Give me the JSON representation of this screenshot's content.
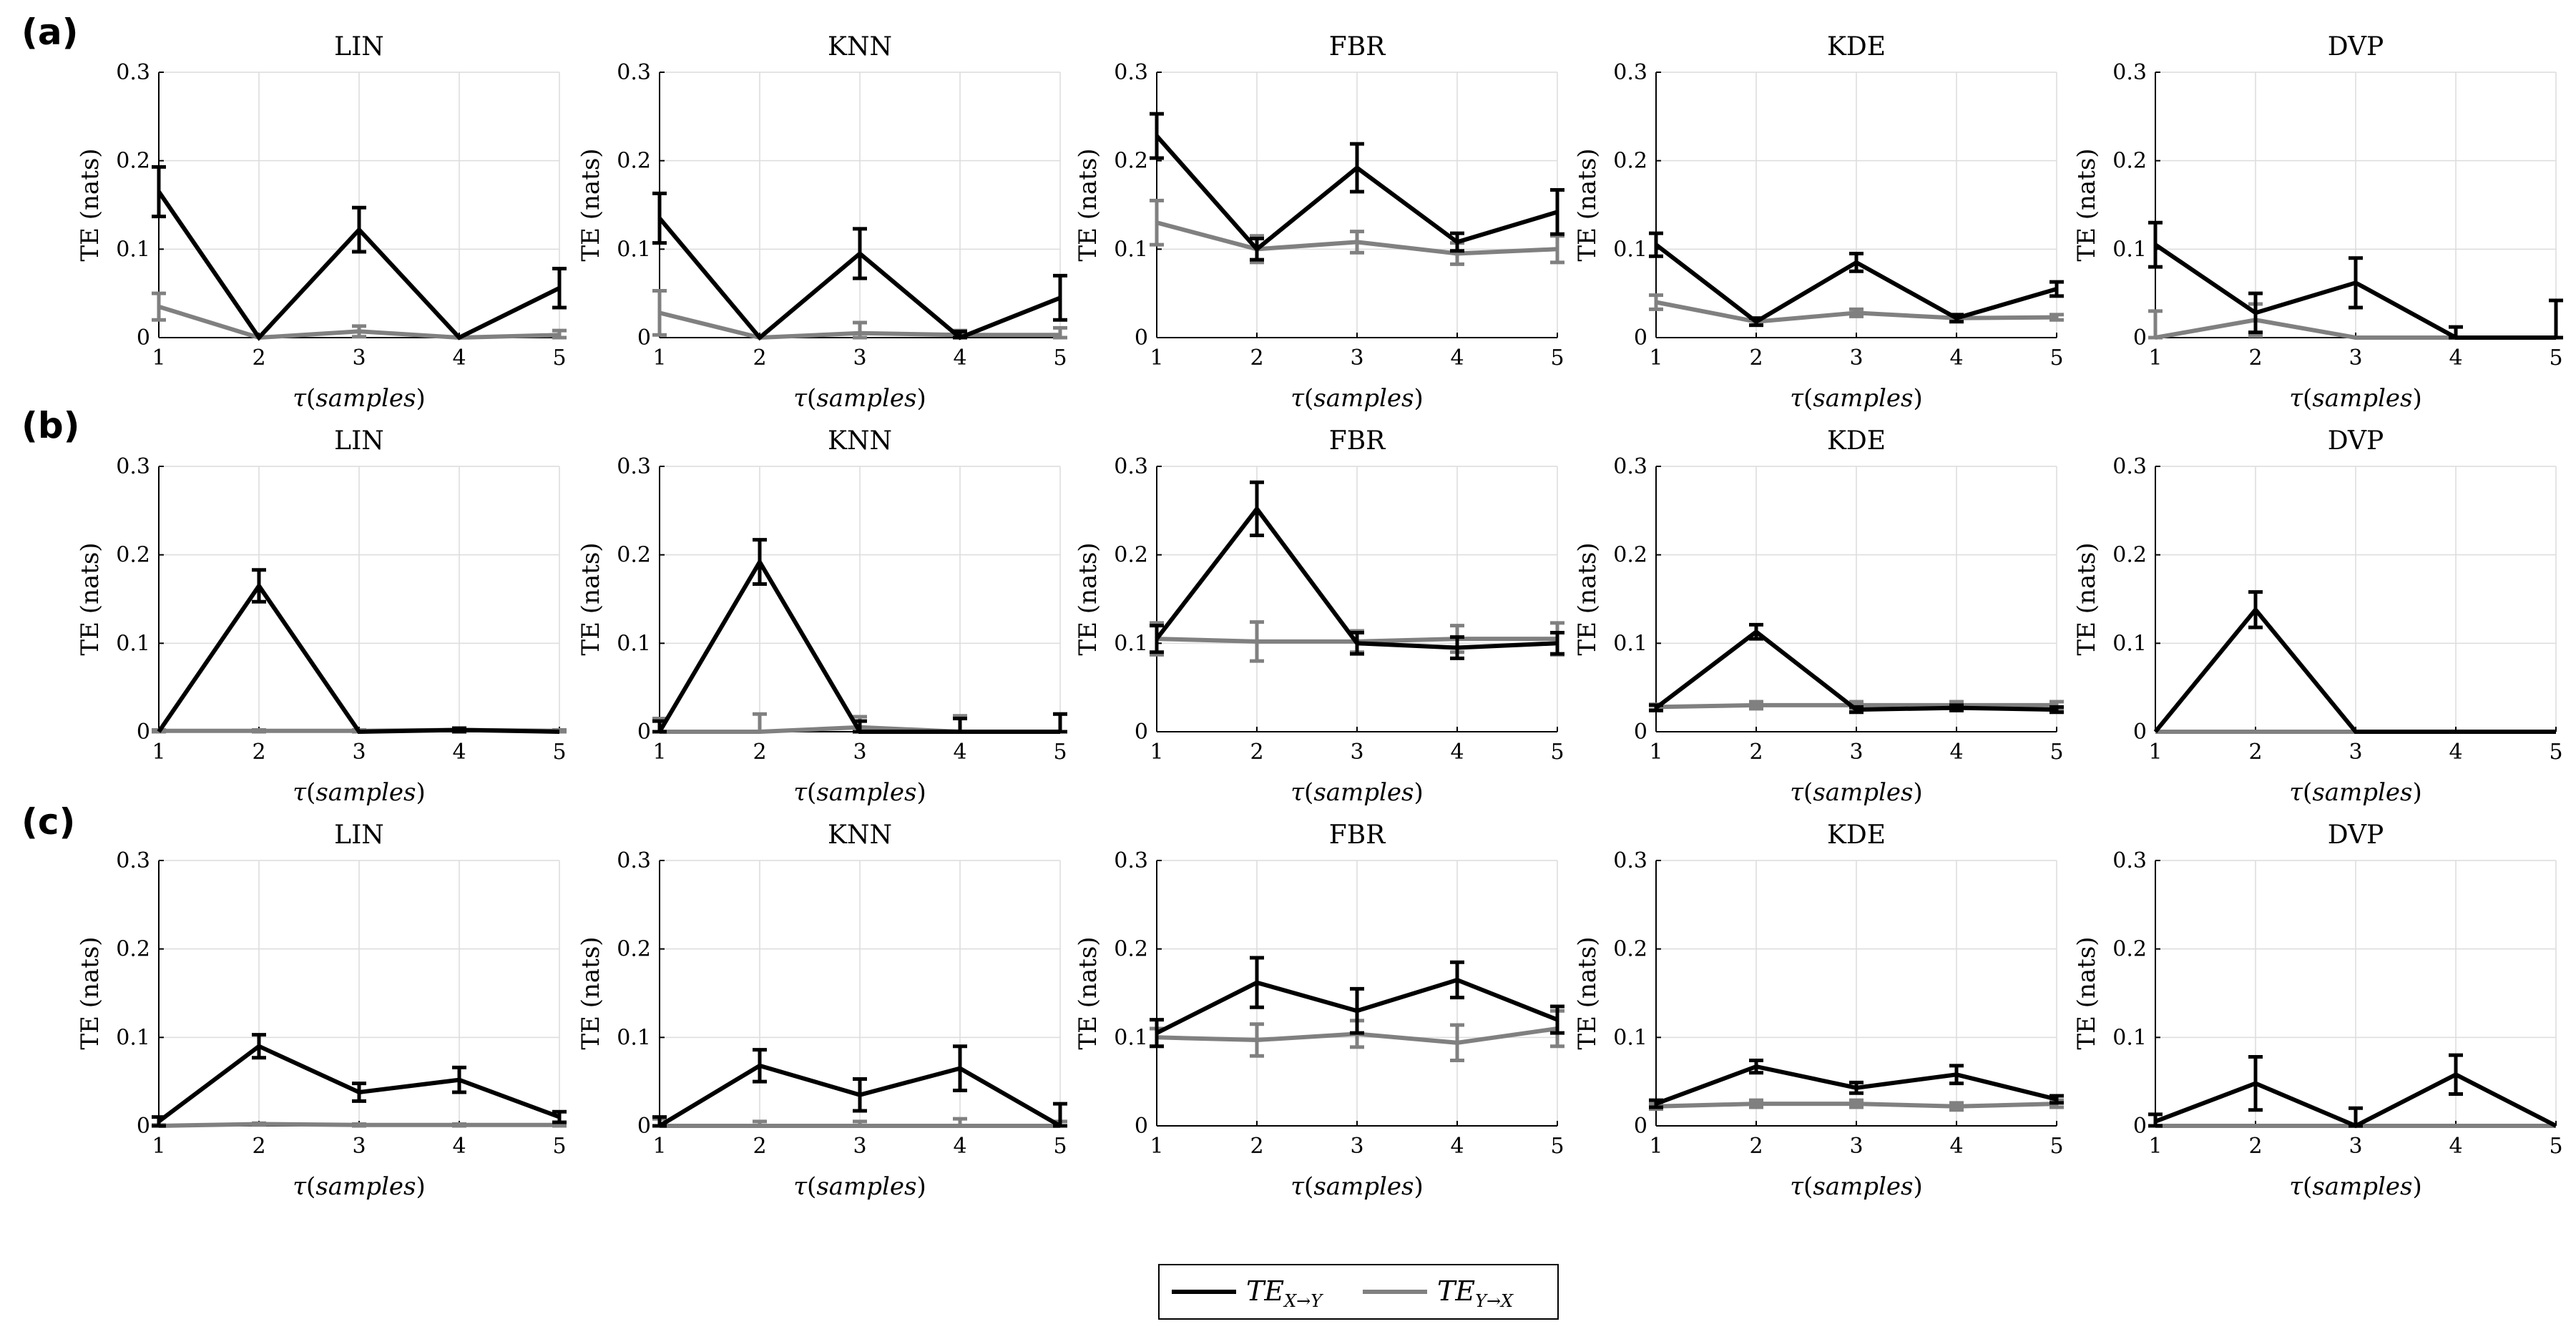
{
  "chart_data": {
    "type": "line",
    "x": [
      1,
      2,
      3,
      4,
      5
    ],
    "ylim": [
      0,
      0.3
    ],
    "yticks": [
      "0",
      "0.1",
      "0.2",
      "0.3"
    ],
    "xticks": [
      "1",
      "2",
      "3",
      "4",
      "5"
    ],
    "ylabel": "TE (nats)",
    "xlabel": "τ(samples)",
    "grid": true,
    "legend": {
      "position": "bottom-center",
      "entries": [
        {
          "name": "TE",
          "sub": "X→Y",
          "color": "#000000"
        },
        {
          "name": "TE",
          "sub": "Y→X",
          "color": "#808080"
        }
      ]
    },
    "rows": [
      {
        "label": "(a)",
        "panels": [
          {
            "title": "LIN",
            "series": [
              {
                "name": "TE X→Y",
                "values": [
                  0.165,
                  0.0,
                  0.122,
                  0.0,
                  0.056
                ],
                "err": [
                  0.028,
                  0,
                  0.025,
                  0,
                  0.022
                ]
              },
              {
                "name": "TE Y→X",
                "values": [
                  0.035,
                  0.0,
                  0.007,
                  0.0,
                  0.003
                ],
                "err": [
                  0.015,
                  0,
                  0.006,
                  0,
                  0.005
                ]
              }
            ]
          },
          {
            "title": "KNN",
            "series": [
              {
                "name": "TE X→Y",
                "values": [
                  0.135,
                  0.0,
                  0.095,
                  0.0,
                  0.045
                ],
                "err": [
                  0.028,
                  0,
                  0.028,
                  0.007,
                  0.025
                ]
              },
              {
                "name": "TE Y→X",
                "values": [
                  0.028,
                  0.0,
                  0.005,
                  0.003,
                  0.003
                ],
                "err": [
                  0.025,
                  0,
                  0.012,
                  0.005,
                  0.008
                ]
              }
            ]
          },
          {
            "title": "FBR",
            "series": [
              {
                "name": "TE X→Y",
                "values": [
                  0.228,
                  0.1,
                  0.192,
                  0.108,
                  0.142
                ],
                "err": [
                  0.025,
                  0.012,
                  0.027,
                  0.01,
                  0.025
                ]
              },
              {
                "name": "TE Y→X",
                "values": [
                  0.13,
                  0.1,
                  0.108,
                  0.095,
                  0.1
                ],
                "err": [
                  0.025,
                  0.015,
                  0.012,
                  0.012,
                  0.015
                ]
              }
            ]
          },
          {
            "title": "KDE",
            "series": [
              {
                "name": "TE X→Y",
                "values": [
                  0.105,
                  0.018,
                  0.085,
                  0.022,
                  0.055
                ],
                "err": [
                  0.013,
                  0.004,
                  0.01,
                  0.004,
                  0.008
                ]
              },
              {
                "name": "TE Y→X",
                "values": [
                  0.04,
                  0.018,
                  0.028,
                  0.022,
                  0.023
                ],
                "err": [
                  0.008,
                  0.004,
                  0.004,
                  0.003,
                  0.003
                ]
              }
            ]
          },
          {
            "title": "DVP",
            "series": [
              {
                "name": "TE X→Y",
                "values": [
                  0.105,
                  0.028,
                  0.062,
                  0.0,
                  0.0
                ],
                "err": [
                  0.025,
                  0.022,
                  0.028,
                  0.012,
                  0.042
                ]
              },
              {
                "name": "TE Y→X",
                "values": [
                  0.0,
                  0.02,
                  0.0,
                  0.0,
                  0.0
                ],
                "err": [
                  0.03,
                  0.018,
                  0,
                  0,
                  0
                ]
              }
            ]
          }
        ]
      },
      {
        "label": "(b)",
        "panels": [
          {
            "title": "LIN",
            "series": [
              {
                "name": "TE X→Y",
                "values": [
                  0.0,
                  0.165,
                  0.0,
                  0.002,
                  0.0
                ],
                "err": [
                  0,
                  0.018,
                  0,
                  0.002,
                  0
                ]
              },
              {
                "name": "TE Y→X",
                "values": [
                  0.001,
                  0.001,
                  0.001,
                  0.002,
                  0.001
                ],
                "err": [
                  0.001,
                  0.001,
                  0.001,
                  0.002,
                  0.001
                ]
              }
            ]
          },
          {
            "title": "KNN",
            "series": [
              {
                "name": "TE X→Y",
                "values": [
                  0.0,
                  0.192,
                  0.0,
                  0.0,
                  0.0
                ],
                "err": [
                  0.012,
                  0.025,
                  0.012,
                  0.015,
                  0.02
                ]
              },
              {
                "name": "TE Y→X",
                "values": [
                  0.0,
                  0.0,
                  0.005,
                  0.0,
                  0.0
                ],
                "err": [
                  0.015,
                  0.02,
                  0.012,
                  0.018,
                  0.02
                ]
              }
            ]
          },
          {
            "title": "FBR",
            "series": [
              {
                "name": "TE X→Y",
                "values": [
                  0.105,
                  0.252,
                  0.1,
                  0.095,
                  0.1
                ],
                "err": [
                  0.015,
                  0.03,
                  0.012,
                  0.012,
                  0.012
                ]
              },
              {
                "name": "TE Y→X",
                "values": [
                  0.105,
                  0.102,
                  0.102,
                  0.105,
                  0.105
                ],
                "err": [
                  0.018,
                  0.022,
                  0.012,
                  0.015,
                  0.018
                ]
              }
            ]
          },
          {
            "title": "KDE",
            "series": [
              {
                "name": "TE X→Y",
                "values": [
                  0.027,
                  0.113,
                  0.025,
                  0.027,
                  0.025
                ],
                "err": [
                  0.003,
                  0.008,
                  0.003,
                  0.003,
                  0.003
                ]
              },
              {
                "name": "TE Y→X",
                "values": [
                  0.028,
                  0.03,
                  0.03,
                  0.03,
                  0.03
                ],
                "err": [
                  0.003,
                  0.004,
                  0.004,
                  0.004,
                  0.004
                ]
              }
            ]
          },
          {
            "title": "DVP",
            "series": [
              {
                "name": "TE X→Y",
                "values": [
                  0.0,
                  0.138,
                  0.0,
                  0.0,
                  0.0
                ],
                "err": [
                  0,
                  0.02,
                  0,
                  0,
                  0
                ]
              },
              {
                "name": "TE Y→X",
                "values": [
                  0.0,
                  0.0,
                  0.0,
                  0.0,
                  0.0
                ],
                "err": [
                  0,
                  0,
                  0,
                  0,
                  0
                ]
              }
            ]
          }
        ]
      },
      {
        "label": "(c)",
        "panels": [
          {
            "title": "LIN",
            "series": [
              {
                "name": "TE X→Y",
                "values": [
                  0.005,
                  0.09,
                  0.038,
                  0.052,
                  0.01
                ],
                "err": [
                  0.005,
                  0.013,
                  0.01,
                  0.014,
                  0.006
                ]
              },
              {
                "name": "TE Y→X",
                "values": [
                  0.0,
                  0.002,
                  0.001,
                  0.001,
                  0.001
                ],
                "err": [
                  0.001,
                  0.001,
                  0.001,
                  0.001,
                  0.001
                ]
              }
            ]
          },
          {
            "title": "KNN",
            "series": [
              {
                "name": "TE X→Y",
                "values": [
                  0.0,
                  0.068,
                  0.035,
                  0.065,
                  0.0
                ],
                "err": [
                  0.01,
                  0.018,
                  0.018,
                  0.025,
                  0.025
                ]
              },
              {
                "name": "TE Y→X",
                "values": [
                  0.0,
                  0.0,
                  0.0,
                  0.0,
                  0.0
                ],
                "err": [
                  0.008,
                  0.005,
                  0.005,
                  0.008,
                  0.005
                ]
              }
            ]
          },
          {
            "title": "FBR",
            "series": [
              {
                "name": "TE X→Y",
                "values": [
                  0.105,
                  0.162,
                  0.13,
                  0.165,
                  0.12
                ],
                "err": [
                  0.015,
                  0.028,
                  0.025,
                  0.02,
                  0.015
                ]
              },
              {
                "name": "TE Y→X",
                "values": [
                  0.1,
                  0.097,
                  0.104,
                  0.094,
                  0.11
                ],
                "err": [
                  0.01,
                  0.018,
                  0.015,
                  0.02,
                  0.02
                ]
              }
            ]
          },
          {
            "title": "KDE",
            "series": [
              {
                "name": "TE X→Y",
                "values": [
                  0.025,
                  0.067,
                  0.043,
                  0.058,
                  0.03
                ],
                "err": [
                  0.004,
                  0.007,
                  0.006,
                  0.01,
                  0.004
                ]
              },
              {
                "name": "TE Y→X",
                "values": [
                  0.022,
                  0.025,
                  0.025,
                  0.022,
                  0.025
                ],
                "err": [
                  0.003,
                  0.004,
                  0.004,
                  0.004,
                  0.004
                ]
              }
            ]
          },
          {
            "title": "DVP",
            "series": [
              {
                "name": "TE X→Y",
                "values": [
                  0.005,
                  0.048,
                  0.0,
                  0.058,
                  0.0
                ],
                "err": [
                  0.008,
                  0.03,
                  0.02,
                  0.022,
                  0
                ]
              },
              {
                "name": "TE Y→X",
                "values": [
                  0.0,
                  0.0,
                  0.0,
                  0.0,
                  0.0
                ],
                "err": [
                  0,
                  0,
                  0,
                  0,
                  0
                ]
              }
            ]
          }
        ]
      }
    ]
  }
}
